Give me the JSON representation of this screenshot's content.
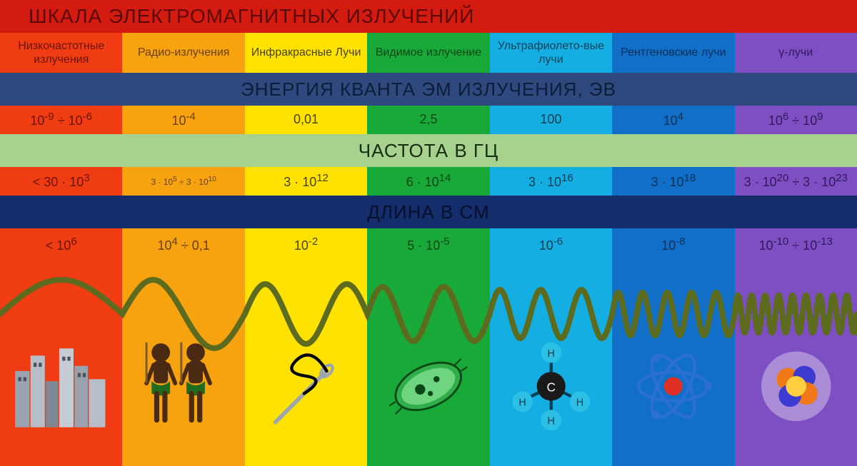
{
  "title": "ШКАЛА ЭЛЕКТРОМАГНИТНЫХ ИЗЛУЧЕНИЙ",
  "title_bg": "#d41b0f",
  "title_color": "#5a0808",
  "columns": [
    {
      "name": "Низкочастотные излучения",
      "bg": "#ef3c12",
      "text": "#6b1406"
    },
    {
      "name": "Радио-излучения",
      "bg": "#f6a30f",
      "text": "#6b4004"
    },
    {
      "name": "Инфракрасные Лучи",
      "bg": "#ffe200",
      "text": "#4a4300"
    },
    {
      "name": "Видимое излучение",
      "bg": "#18a938",
      "text": "#0a4717"
    },
    {
      "name": "Ультрафиолето-вые лучи",
      "bg": "#14aee3",
      "text": "#063f52"
    },
    {
      "name": "Рентгеновские лучи",
      "bg": "#116fc7",
      "text": "#06305a"
    },
    {
      "name": "γ-лучи",
      "bg": "#7d4fc2",
      "text": "#33185c"
    }
  ],
  "sections": [
    {
      "id": "energy",
      "label": "ЭНЕРГИЯ КВАНТА ЭМ ИЗЛУЧЕНИЯ, ЭВ",
      "bg": "#2f497e",
      "color": "#0d1d38",
      "value_row_heights": 40,
      "values": [
        "10^{-9} ÷ 10^{-6}",
        "10^{-4}",
        "0,01",
        "2,5",
        "100",
        "10^{4}",
        "10^{6} ÷ 10^{9}"
      ]
    },
    {
      "id": "freq",
      "label": "ЧАСТОТА В ГЦ",
      "bg": "#a7d18f",
      "color": "#182c10",
      "values": [
        "< 30 · 10^{3}",
        "3 · 10^{5} ÷ 3 · 10^{10}",
        "3 · 10^{12}",
        "6 · 10^{14}",
        "3 · 10^{16}",
        "3 · 10^{18}",
        "3 · 10^{20} ÷ 3 · 10^{23}"
      ]
    },
    {
      "id": "length",
      "label": "ДЛИНА В СМ",
      "bg": "#142d6b",
      "color": "#060f2b",
      "values": [
        "< 10^{6}",
        "10^{4} ÷ 0,1",
        "10^{-2}",
        "5 · 10^{-5}",
        "10^{-6}",
        "10^{-8}",
        "10^{-10} ÷ 10^{-13}"
      ]
    }
  ],
  "wave": {
    "color": "#5d6b1f",
    "stroke_width": 8,
    "segments": [
      {
        "cycles": 0.5,
        "amp": 48
      },
      {
        "cycles": 1.0,
        "amp": 48
      },
      {
        "cycles": 1.5,
        "amp": 42
      },
      {
        "cycles": 2.0,
        "amp": 38
      },
      {
        "cycles": 3.0,
        "amp": 34
      },
      {
        "cycles": 5.0,
        "amp": 30
      },
      {
        "cycles": 9.0,
        "amp": 26
      }
    ]
  },
  "icons": [
    {
      "name": "city-icon",
      "label": "buildings"
    },
    {
      "name": "humans-icon",
      "label": "humans"
    },
    {
      "name": "needle-icon",
      "label": "needle"
    },
    {
      "name": "cell-icon",
      "label": "cell"
    },
    {
      "name": "molecule-icon",
      "label": "molecule"
    },
    {
      "name": "atom-icon",
      "label": "atom"
    },
    {
      "name": "nucleus-icon",
      "label": "nucleus"
    }
  ],
  "fontsize": {
    "title": 28,
    "section": 26,
    "category": 16,
    "value": 18
  }
}
